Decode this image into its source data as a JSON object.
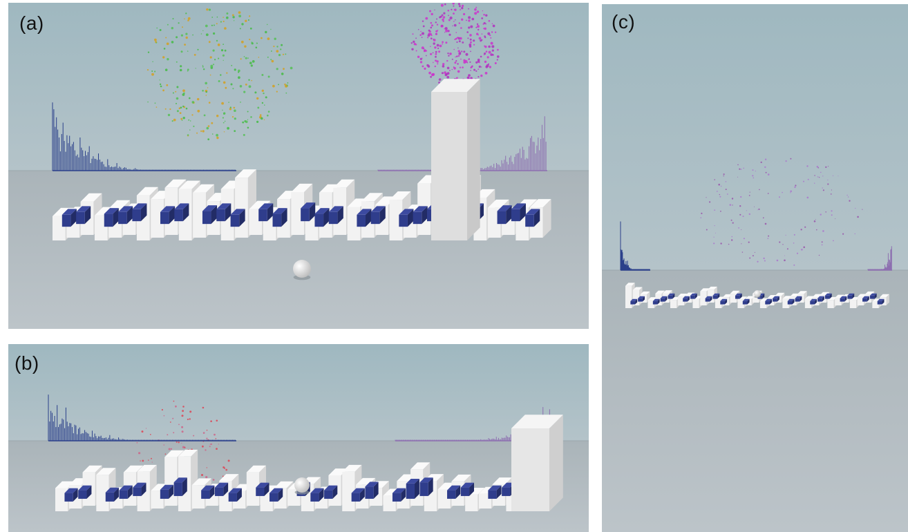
{
  "figure": {
    "panels": [
      {
        "id": "a",
        "label": "(a)",
        "particle_colors": [
          "#cc33cc",
          "#44bb44",
          "#d4a020"
        ]
      },
      {
        "id": "b",
        "label": "(b)",
        "particle_colors": [
          "#dd4455",
          "#cc6688"
        ]
      },
      {
        "id": "c",
        "label": "(c)",
        "particle_colors": [
          "#9955aa",
          "#aa77cc"
        ]
      }
    ]
  },
  "colors": {
    "sky_top": "#9fb8c0",
    "sky_bottom": "#b4c3c9",
    "floor_top": "#aab4b9",
    "floor_bottom": "#bcc4c9",
    "white_key": "#f2f2f2",
    "white_key_side": "#d6d6d6",
    "black_key": "#2f3d8c",
    "black_key_side": "#222c66",
    "spectrum_left": "#2a3f8a",
    "spectrum_right": "#8d6fb0",
    "ball": "#e8e8e8"
  },
  "icons": [
    "white-ball-avatar",
    "piano-keyboard-3d",
    "spectrum-bars",
    "particle-cloud"
  ]
}
